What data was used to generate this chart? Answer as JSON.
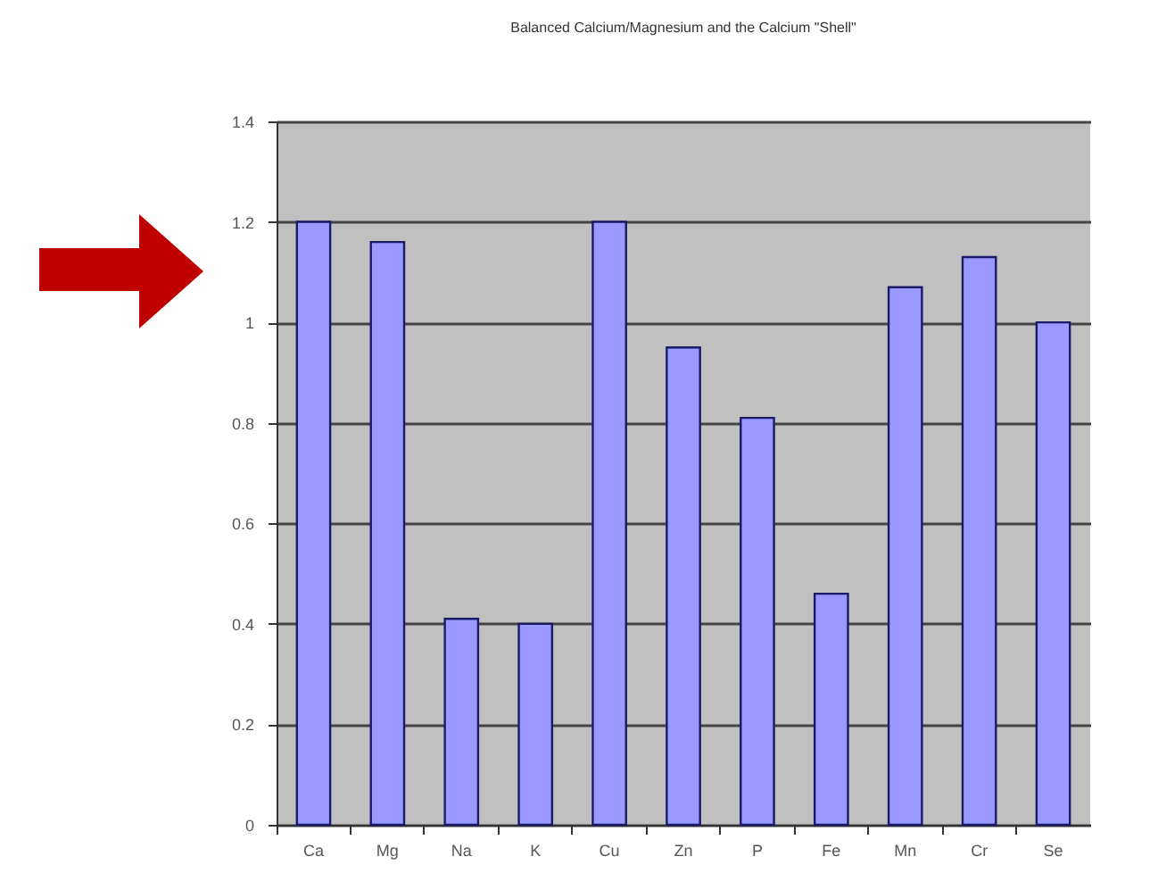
{
  "chart_data": {
    "type": "bar",
    "title": "Balanced Calcium/Magnesium and the Calcium \"Shell\"",
    "categories": [
      "Ca",
      "Mg",
      "Na",
      "K",
      "Cu",
      "Zn",
      "P",
      "Fe",
      "Mn",
      "Cr",
      "Se"
    ],
    "values": [
      1.2,
      1.16,
      0.41,
      0.4,
      1.2,
      0.95,
      0.81,
      0.46,
      1.07,
      1.13,
      1.0
    ],
    "color": "#9999ff",
    "ylim": [
      0,
      1.4
    ],
    "yticks": [
      0,
      0.2,
      0.4,
      0.6,
      0.8,
      1,
      1.2,
      1.4
    ],
    "grid": "y"
  }
}
